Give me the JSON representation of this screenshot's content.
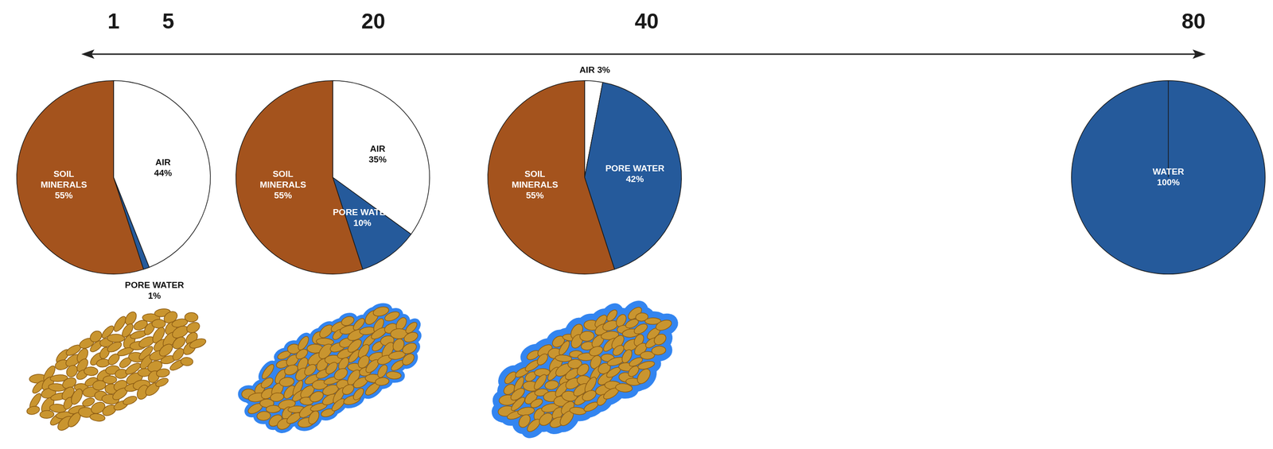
{
  "axis": {
    "xticks": [
      1,
      5,
      20,
      40,
      80
    ]
  },
  "chart_data": [
    {
      "type": "pie",
      "categories": [
        "AIR",
        "PORE WATER",
        "SOIL MINERALS"
      ],
      "values": [
        44,
        1,
        55
      ],
      "value_labels": [
        "44%",
        "1%",
        "55%"
      ],
      "colors": [
        "#ffffff",
        "#255a9b",
        "#a4531d"
      ],
      "data_labels": true
    },
    {
      "type": "pie",
      "categories": [
        "AIR",
        "PORE WATER",
        "SOIL MINERALS"
      ],
      "values": [
        35,
        10,
        55
      ],
      "value_labels": [
        "35%",
        "10%",
        "55%"
      ],
      "colors": [
        "#ffffff",
        "#255a9b",
        "#a4531d"
      ],
      "data_labels": true
    },
    {
      "type": "pie",
      "categories": [
        "AIR",
        "PORE WATER",
        "SOIL MINERALS"
      ],
      "values": [
        3,
        42,
        55
      ],
      "value_labels": [
        "3%",
        "42%",
        "55%"
      ],
      "colors": [
        "#ffffff",
        "#255a9b",
        "#a4531d"
      ],
      "data_labels": true
    },
    {
      "type": "pie",
      "categories": [
        "WATER"
      ],
      "values": [
        100
      ],
      "value_labels": [
        "100%"
      ],
      "colors": [
        "#255a9b"
      ],
      "data_labels": true
    }
  ]
}
